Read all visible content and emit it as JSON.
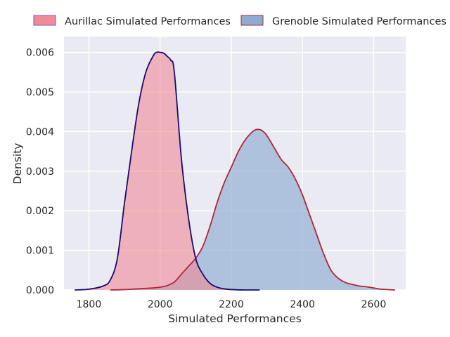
{
  "chart_data": {
    "type": "area",
    "title": "",
    "xlabel": "Simulated Performances",
    "ylabel": "Density",
    "xlim": [
      1730,
      2690
    ],
    "ylim": [
      0,
      0.0064
    ],
    "x_ticks": [
      1800,
      2000,
      2200,
      2400,
      2600
    ],
    "y_ticks": [
      0.0,
      0.001,
      0.002,
      0.003,
      0.004,
      0.005,
      0.006
    ],
    "x_tick_labels": [
      "1800",
      "2000",
      "2200",
      "2400",
      "2600"
    ],
    "y_tick_labels": [
      "0.000",
      "0.001",
      "0.002",
      "0.003",
      "0.004",
      "0.005",
      "0.006"
    ],
    "grid": true,
    "legend_position": "top",
    "series": [
      {
        "name": "Aurillac Simulated Performances",
        "fill_color": "#f08a97",
        "line_color": "#1a0a6e",
        "legend_edge": "#7a5ac8",
        "x": [
          1760,
          1800,
          1840,
          1860,
          1880,
          1900,
          1920,
          1940,
          1960,
          1980,
          1990,
          2000,
          2010,
          2020,
          2030,
          2040,
          2060,
          2080,
          2100,
          2120,
          2140,
          2160,
          2180,
          2200,
          2240,
          2280
        ],
        "y": [
          0,
          2e-05,
          0.0001,
          0.00025,
          0.0008,
          0.0022,
          0.0035,
          0.0047,
          0.0055,
          0.0059,
          0.006,
          0.006,
          0.00598,
          0.0059,
          0.0058,
          0.0055,
          0.0033,
          0.0018,
          0.0008,
          0.0004,
          0.00017,
          7e-05,
          3e-05,
          1e-05,
          0,
          0
        ]
      },
      {
        "name": "Grenoble Simulated Performances",
        "fill_color": "#8eabd1",
        "line_color": "#b0263a",
        "legend_edge": "#b0263a",
        "x": [
          1860,
          1900,
          1940,
          1980,
          2000,
          2020,
          2040,
          2060,
          2080,
          2100,
          2120,
          2140,
          2160,
          2180,
          2200,
          2220,
          2240,
          2260,
          2270,
          2280,
          2290,
          2300,
          2320,
          2340,
          2360,
          2380,
          2400,
          2420,
          2440,
          2460,
          2480,
          2500,
          2520,
          2540,
          2560,
          2580,
          2600,
          2620,
          2660
        ],
        "y": [
          0,
          1e-05,
          3e-05,
          5e-05,
          7e-05,
          0.00011,
          0.0002,
          0.0004,
          0.0006,
          0.0008,
          0.0011,
          0.0016,
          0.0022,
          0.0027,
          0.0031,
          0.0035,
          0.0038,
          0.004,
          0.00405,
          0.00405,
          0.004,
          0.0039,
          0.0036,
          0.0033,
          0.0031,
          0.0028,
          0.0024,
          0.0019,
          0.0014,
          0.0009,
          0.0005,
          0.0003,
          0.00019,
          0.00014,
          0.0001,
          8e-05,
          5e-05,
          2e-05,
          0
        ]
      }
    ]
  }
}
